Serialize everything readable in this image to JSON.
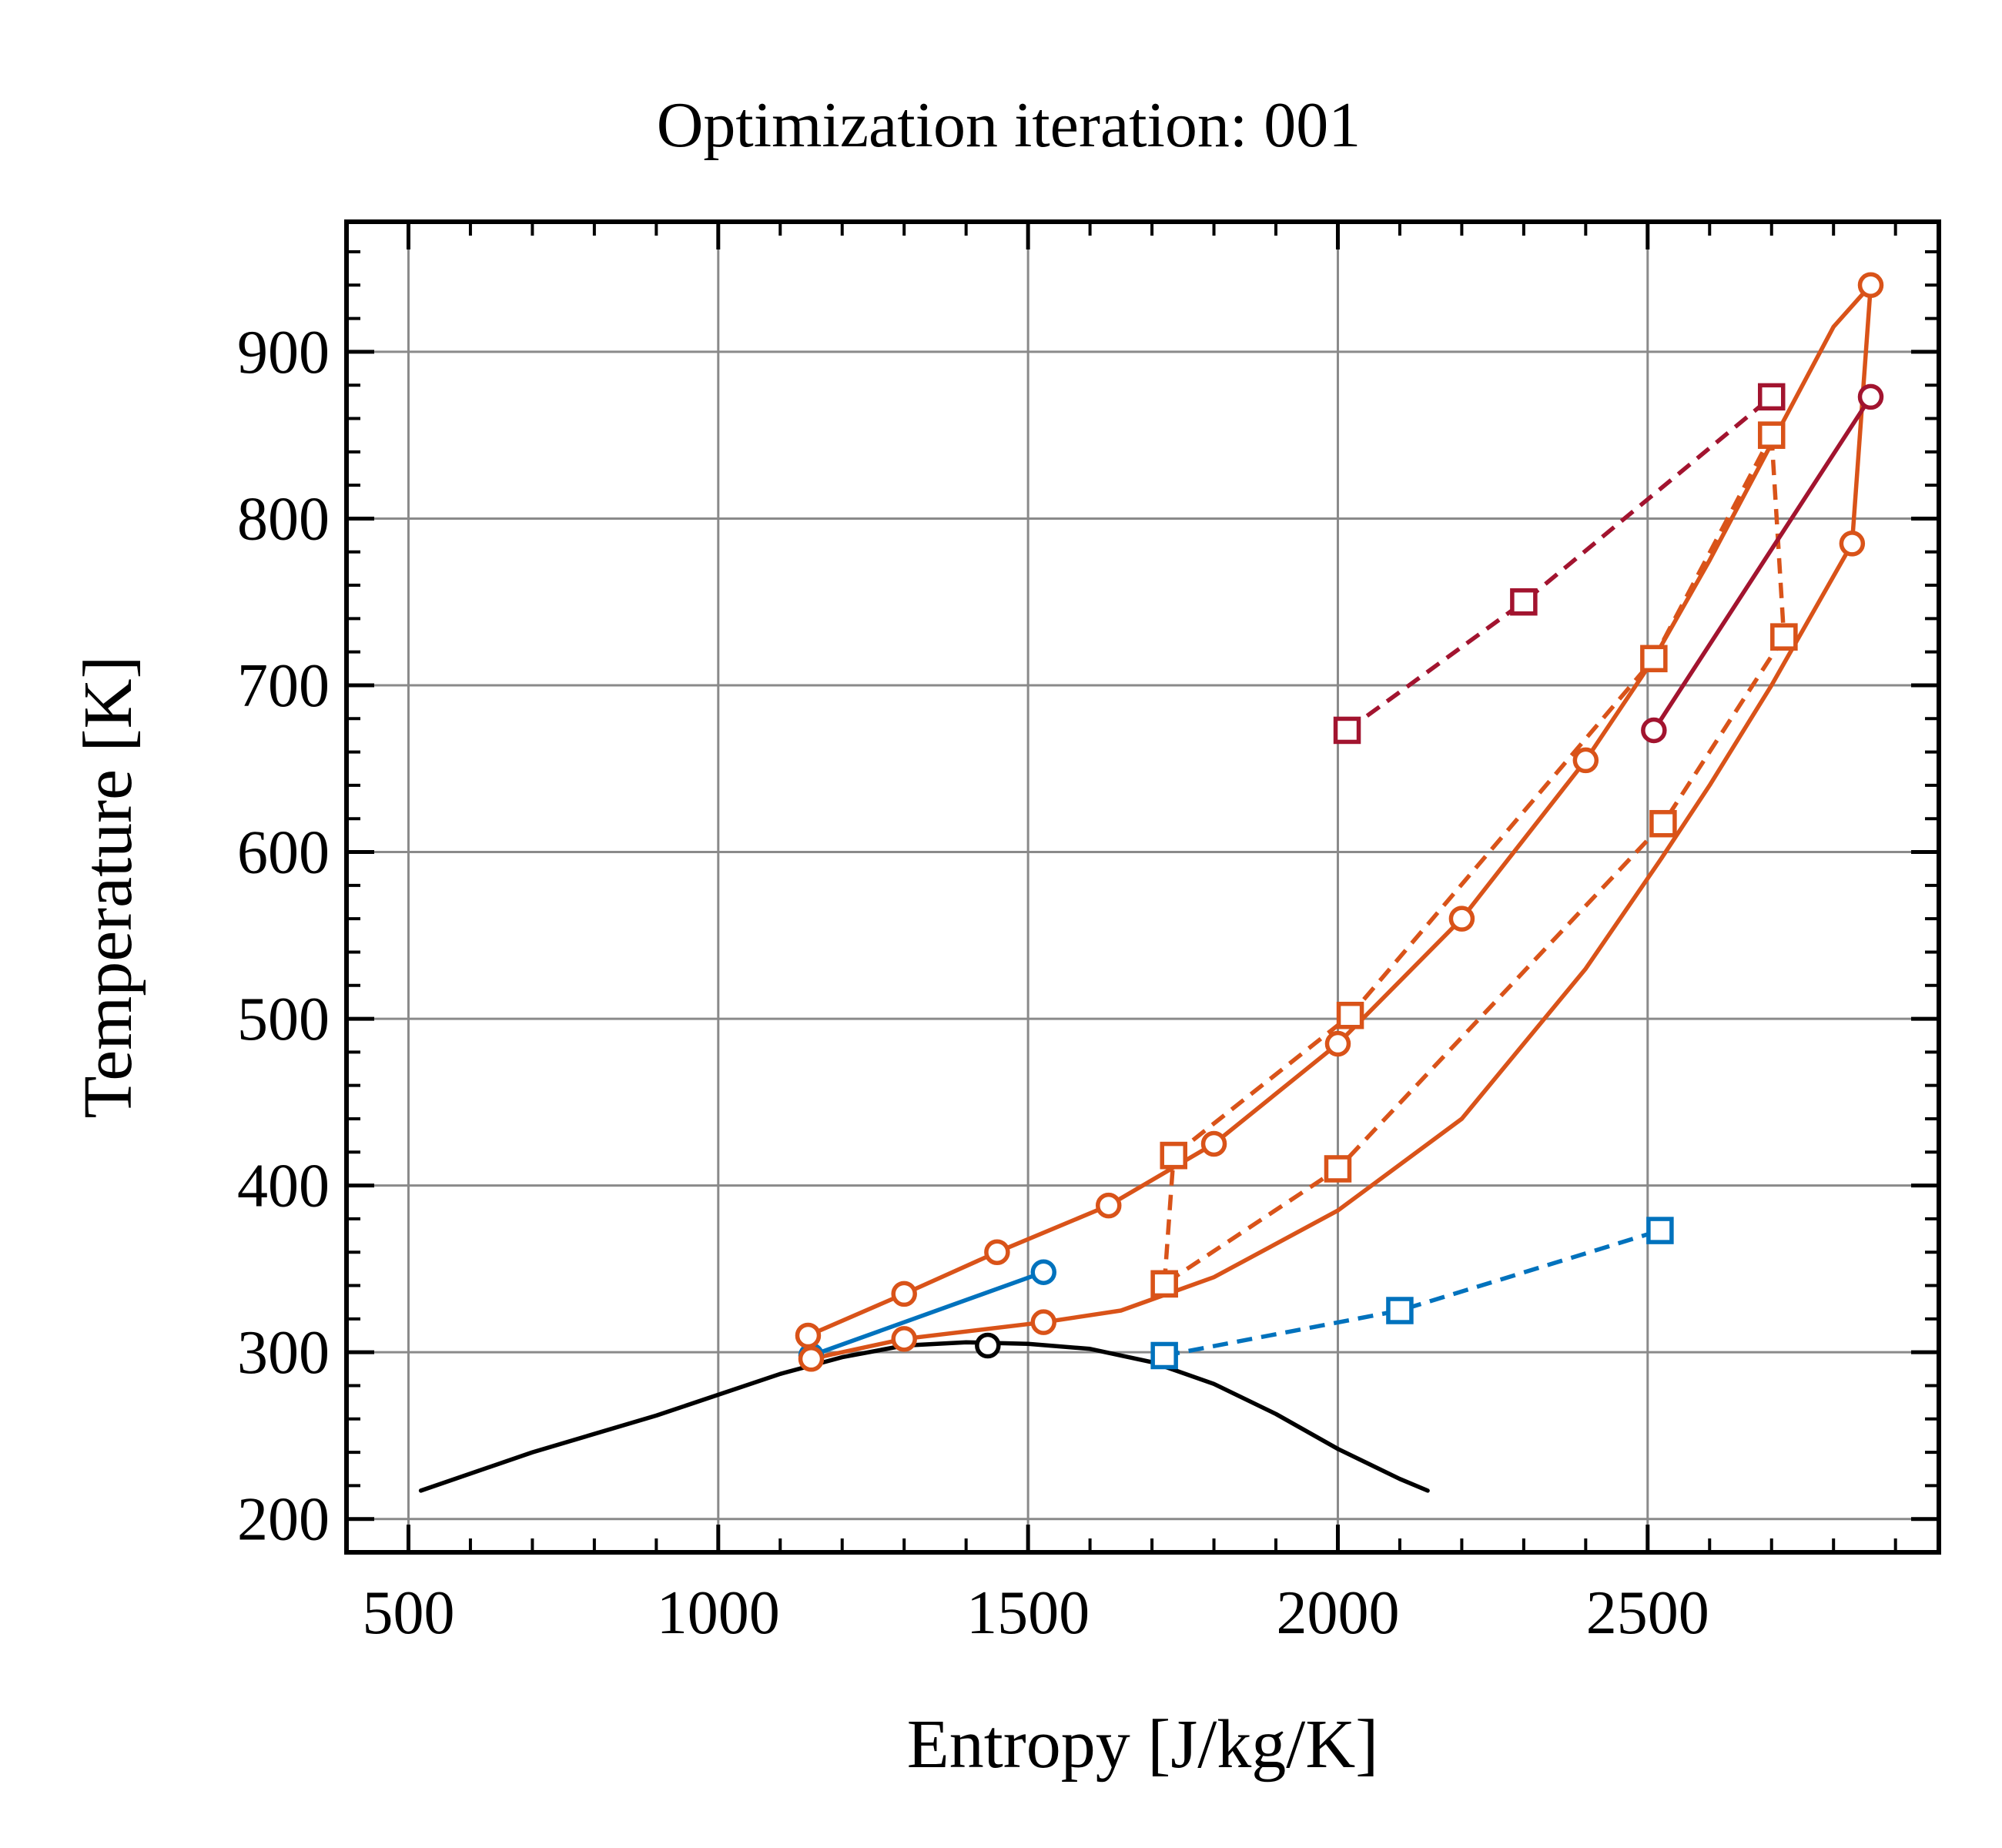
{
  "chart_data": {
    "type": "line",
    "title": "Optimization iteration: 001",
    "xlabel": "Entropy [J/kg/K]",
    "ylabel": "Temperature [K]",
    "xlim": [
      400,
      2970
    ],
    "ylim": [
      180,
      978
    ],
    "xticks": [
      500,
      1000,
      1500,
      2000,
      2500
    ],
    "yticks": [
      200,
      300,
      400,
      500,
      600,
      700,
      800,
      900
    ],
    "x_minor_step": 100,
    "y_minor_step": 20,
    "grid": true,
    "tick_direction": "in",
    "colors": {
      "orange": "#D95319",
      "blue": "#0072BD",
      "crimson": "#A2142F",
      "black": "#000000"
    },
    "series": [
      {
        "color": "#000000",
        "style": "solid",
        "marker": "none",
        "x": [
          520,
          700,
          900,
          1100,
          1200,
          1300,
          1400,
          1500,
          1600,
          1700,
          1800,
          1900,
          2000,
          2100,
          2145
        ],
        "y": [
          217,
          240,
          262,
          287,
          297,
          304,
          306,
          305,
          302,
          294,
          281,
          263,
          242,
          224,
          217
        ]
      },
      {
        "color": "#000000",
        "style": "none",
        "marker": "circle",
        "x": [
          1435
        ],
        "y": [
          304
        ]
      },
      {
        "color": "#0072BD",
        "style": "solid",
        "marker": "circle",
        "x": [
          1150,
          1525
        ],
        "y": [
          298,
          348
        ]
      },
      {
        "color": "#0072BD",
        "style": "dashed",
        "marker": "square",
        "x": [
          1720,
          2100,
          2520
        ],
        "y": [
          298,
          325,
          373
        ]
      },
      {
        "color": "#D95319",
        "style": "solid",
        "marker": "circle",
        "x": [
          1145,
          1300,
          1450,
          1630,
          1800,
          2000,
          2200,
          2400,
          2510
        ],
        "y": [
          310,
          335,
          360,
          388,
          425,
          485,
          560,
          655,
          716
        ]
      },
      {
        "color": "#D95319",
        "style": "solid",
        "marker": "none",
        "x": [
          2510,
          2600,
          2700,
          2800,
          2860
        ],
        "y": [
          716,
          775,
          845,
          915,
          940
        ]
      },
      {
        "color": "#D95319",
        "style": "solid",
        "marker": "circle",
        "x": [
          2860,
          2830
        ],
        "y": [
          940,
          785
        ]
      },
      {
        "color": "#D95319",
        "style": "solid",
        "marker": "none",
        "x": [
          2830,
          2700,
          2600,
          2520,
          2400,
          2200,
          2000,
          1800,
          1650,
          1525
        ],
        "y": [
          785,
          700,
          640,
          595,
          530,
          440,
          385,
          345,
          325,
          318
        ]
      },
      {
        "color": "#D95319",
        "style": "solid",
        "marker": "circle",
        "x": [
          1525,
          1300,
          1150
        ],
        "y": [
          318,
          308,
          296
        ]
      },
      {
        "color": "#D95319",
        "style": "dashed",
        "marker": "square",
        "x": [
          1735,
          2020,
          2510,
          2700
        ],
        "y": [
          418,
          502,
          716,
          850
        ]
      },
      {
        "color": "#D95319",
        "style": "dashed",
        "marker": "square",
        "x": [
          2700,
          2720
        ],
        "y": [
          850,
          729
        ]
      },
      {
        "color": "#D95319",
        "style": "dashed",
        "marker": "square",
        "x": [
          2720,
          2525,
          2000,
          1720
        ],
        "y": [
          729,
          617,
          410,
          341
        ]
      },
      {
        "color": "#D95319",
        "style": "dashed",
        "marker": "square",
        "x": [
          1720,
          1735
        ],
        "y": [
          341,
          418
        ]
      },
      {
        "color": "#A2142F",
        "style": "dashed",
        "marker": "square",
        "x": [
          2015,
          2300,
          2700
        ],
        "y": [
          673,
          750,
          873
        ]
      },
      {
        "color": "#A2142F",
        "style": "solid",
        "marker": "circle",
        "x": [
          2510,
          2860
        ],
        "y": [
          673,
          873
        ]
      }
    ]
  }
}
